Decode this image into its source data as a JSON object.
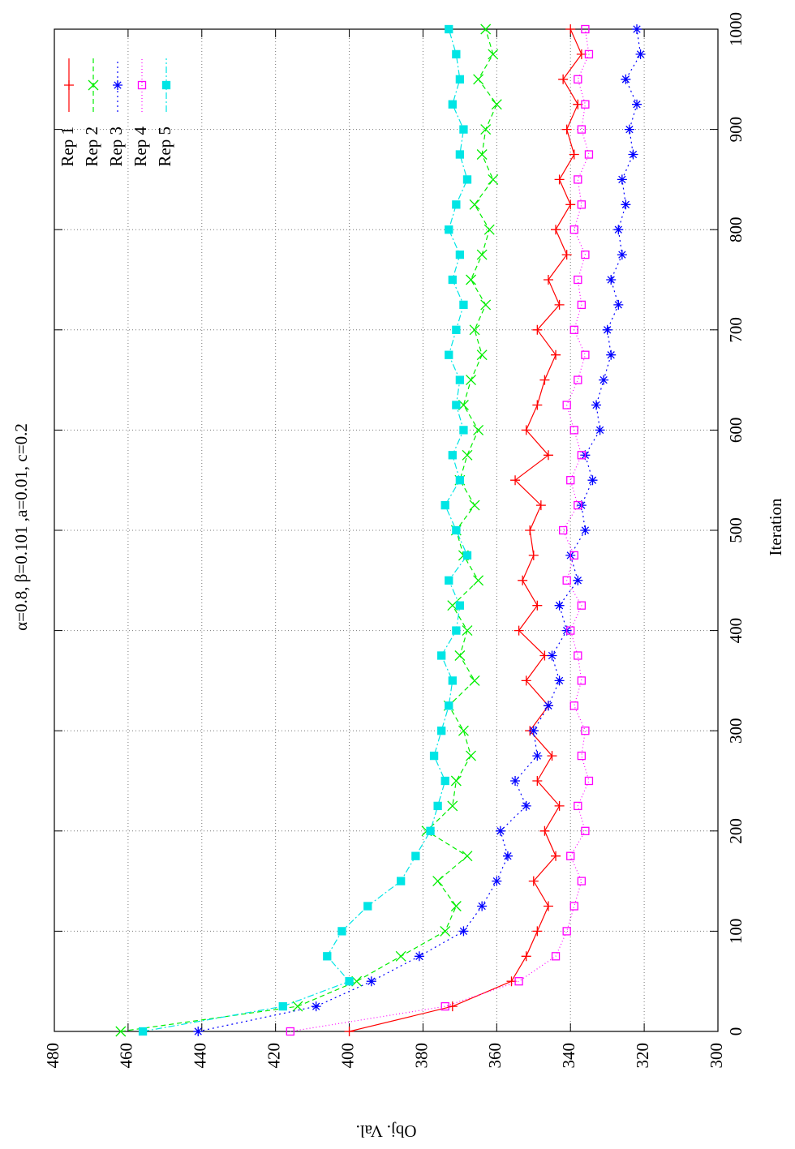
{
  "chart_data": {
    "type": "line",
    "title": "α=0.8, β=0.101 ,a=0.01, c=0.2",
    "xlabel": "Iteration",
    "ylabel": "Obj. Val.",
    "x": [
      0,
      25,
      50,
      75,
      100,
      125,
      150,
      175,
      200,
      225,
      250,
      275,
      300,
      325,
      350,
      375,
      400,
      425,
      450,
      475,
      500,
      525,
      550,
      575,
      600,
      625,
      650,
      675,
      700,
      725,
      750,
      775,
      800,
      825,
      850,
      875,
      900,
      925,
      950,
      975,
      1000
    ],
    "series": [
      {
        "name": "Rep 1",
        "color": "#ff0000",
        "values": [
          400,
          372,
          356,
          352,
          349,
          346,
          350,
          344,
          347,
          343,
          349,
          345,
          351,
          346,
          352,
          347,
          354,
          349,
          353,
          350,
          351,
          348,
          355,
          346,
          352,
          349,
          347,
          344,
          349,
          343,
          346,
          341,
          344,
          340,
          343,
          339,
          341,
          338,
          342,
          337,
          340
        ]
      },
      {
        "name": "Rep 2",
        "color": "#00ee00",
        "values": [
          462,
          414,
          398,
          386,
          374,
          371,
          376,
          368,
          379,
          372,
          371,
          367,
          369,
          373,
          366,
          370,
          368,
          372,
          365,
          369,
          371,
          366,
          370,
          368,
          365,
          369,
          367,
          364,
          366,
          363,
          367,
          364,
          362,
          366,
          361,
          364,
          363,
          360,
          365,
          361,
          363
        ]
      },
      {
        "name": "Rep 3",
        "color": "#0000ff",
        "values": [
          441,
          409,
          394,
          381,
          369,
          364,
          360,
          357,
          359,
          352,
          355,
          349,
          350,
          346,
          343,
          345,
          341,
          343,
          338,
          340,
          336,
          337,
          334,
          336,
          332,
          333,
          331,
          329,
          330,
          327,
          329,
          326,
          327,
          325,
          326,
          323,
          324,
          322,
          325,
          321,
          322
        ]
      },
      {
        "name": "Rep 4",
        "color": "#ff00ff",
        "values": [
          416,
          374,
          354,
          344,
          341,
          339,
          337,
          340,
          336,
          338,
          335,
          337,
          336,
          339,
          337,
          338,
          340,
          337,
          341,
          339,
          342,
          338,
          340,
          337,
          339,
          341,
          338,
          336,
          339,
          337,
          338,
          336,
          339,
          337,
          338,
          335,
          337,
          336,
          338,
          335,
          336
        ]
      },
      {
        "name": "Rep 5",
        "color": "#00e5e5",
        "values": [
          456,
          418,
          400,
          406,
          402,
          395,
          386,
          382,
          378,
          376,
          374,
          377,
          375,
          373,
          372,
          375,
          371,
          370,
          373,
          368,
          371,
          374,
          370,
          372,
          369,
          371,
          370,
          373,
          371,
          369,
          372,
          370,
          373,
          371,
          368,
          370,
          369,
          372,
          370,
          371,
          373
        ]
      }
    ],
    "xlim": [
      0,
      1000
    ],
    "xticks": [
      0,
      100,
      200,
      300,
      400,
      500,
      600,
      700,
      800,
      900,
      1000
    ],
    "ylim": [
      300,
      480
    ],
    "yticks": [
      300,
      320,
      340,
      360,
      380,
      400,
      420,
      440,
      460,
      480
    ],
    "grid": true,
    "legend": "top right"
  }
}
